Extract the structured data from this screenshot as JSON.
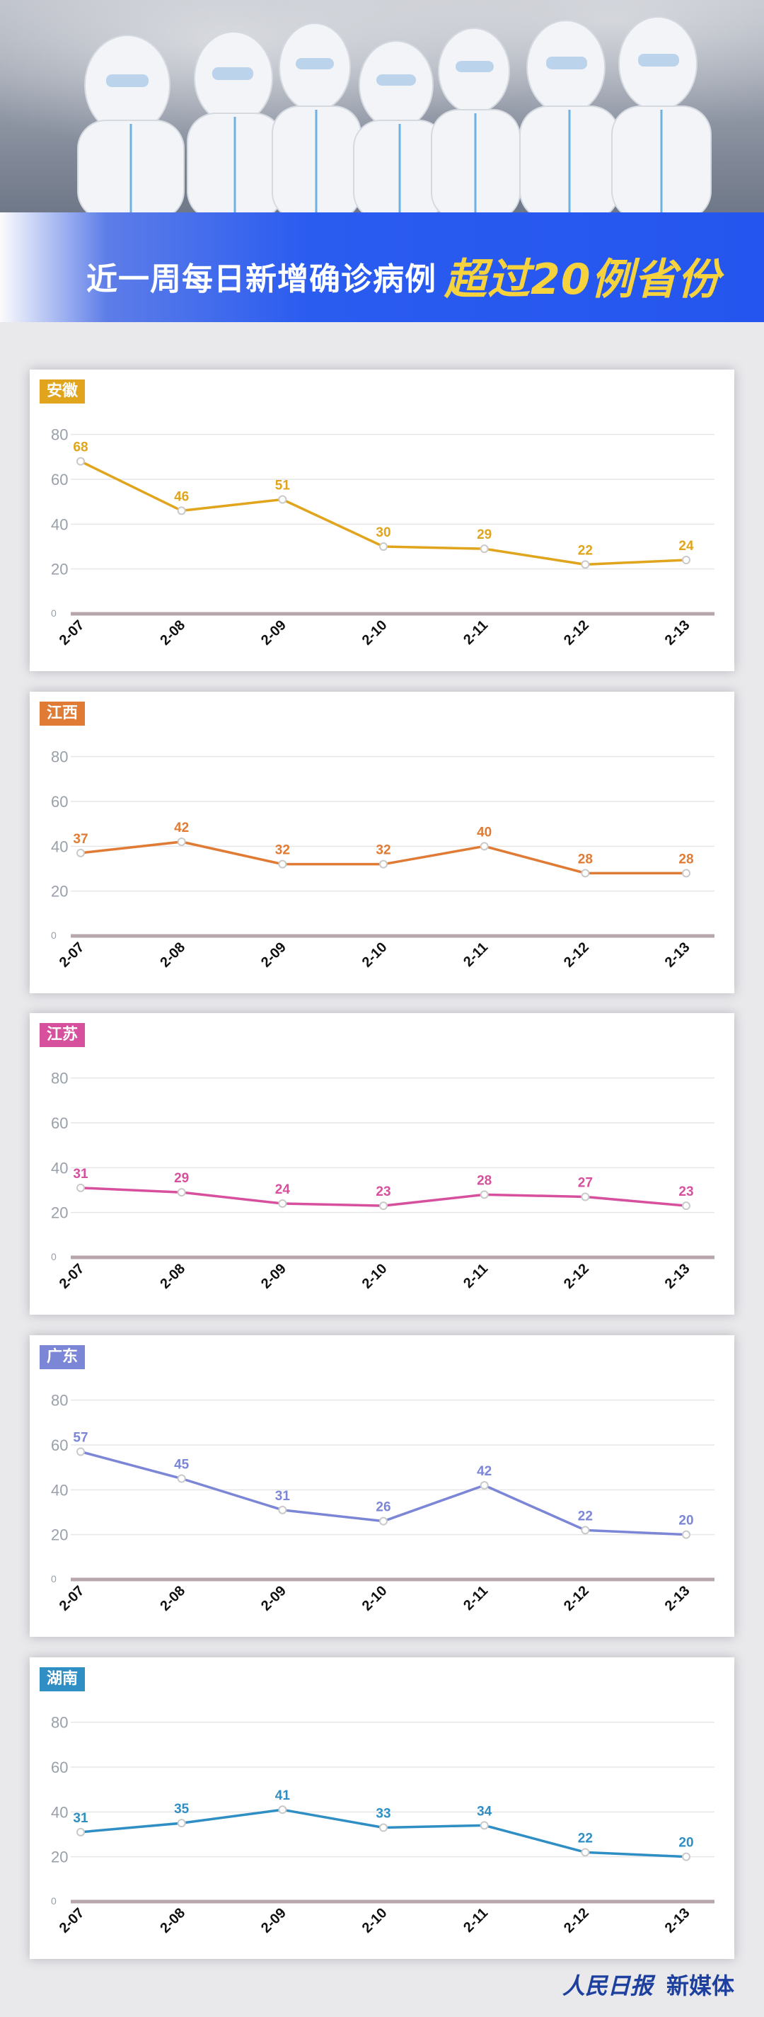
{
  "banner": {
    "title_plain": "近一周每日新增确诊病例",
    "title_highlight": "超过20例省份"
  },
  "colors": {
    "banner_blue": "#2455ee",
    "highlight_yellow": "#f6d33c"
  },
  "chart_data": [
    {
      "type": "line",
      "title": "安徽",
      "color": "#e0a51c",
      "categories": [
        "2-07",
        "2-08",
        "2-09",
        "2-10",
        "2-11",
        "2-12",
        "2-13"
      ],
      "values": [
        68,
        46,
        51,
        30,
        29,
        22,
        24
      ],
      "ylim": [
        0,
        90
      ],
      "yticks": [
        0,
        20,
        40,
        60,
        80
      ],
      "grid": true
    },
    {
      "type": "line",
      "title": "江西",
      "color": "#e07b35",
      "categories": [
        "2-07",
        "2-08",
        "2-09",
        "2-10",
        "2-11",
        "2-12",
        "2-13"
      ],
      "values": [
        37,
        42,
        32,
        32,
        40,
        28,
        28
      ],
      "ylim": [
        0,
        90
      ],
      "yticks": [
        0,
        20,
        40,
        60,
        80
      ],
      "grid": true
    },
    {
      "type": "line",
      "title": "江苏",
      "color": "#d7509e",
      "categories": [
        "2-07",
        "2-08",
        "2-09",
        "2-10",
        "2-11",
        "2-12",
        "2-13"
      ],
      "values": [
        31,
        29,
        24,
        23,
        28,
        27,
        23
      ],
      "ylim": [
        0,
        90
      ],
      "yticks": [
        0,
        20,
        40,
        60,
        80
      ],
      "grid": true
    },
    {
      "type": "line",
      "title": "广东",
      "color": "#7c86d6",
      "categories": [
        "2-07",
        "2-08",
        "2-09",
        "2-10",
        "2-11",
        "2-12",
        "2-13"
      ],
      "values": [
        57,
        45,
        31,
        26,
        42,
        22,
        20
      ],
      "ylim": [
        0,
        90
      ],
      "yticks": [
        0,
        20,
        40,
        60,
        80
      ],
      "grid": true
    },
    {
      "type": "line",
      "title": "湖南",
      "color": "#2f8fc4",
      "categories": [
        "2-07",
        "2-08",
        "2-09",
        "2-10",
        "2-11",
        "2-12",
        "2-13"
      ],
      "values": [
        31,
        35,
        41,
        33,
        34,
        22,
        20
      ],
      "ylim": [
        0,
        90
      ],
      "yticks": [
        0,
        20,
        40,
        60,
        80
      ],
      "grid": true
    }
  ],
  "footer": {
    "logo_text": "人民日报",
    "suffix": "新媒体"
  }
}
